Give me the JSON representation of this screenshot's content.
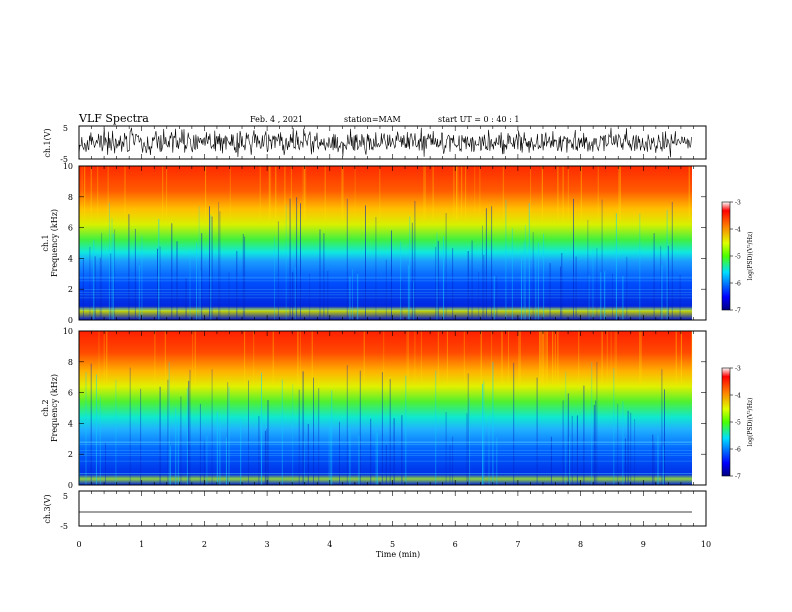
{
  "header": {
    "title": "VLF Spectra",
    "date": "Feb. 4 , 2021",
    "station": "station=MAM",
    "start": "start UT = 0 : 40 : 1"
  },
  "chart_data": [
    {
      "type": "line",
      "panel": "ch1-waveform",
      "ylabel": "ch.1(V)",
      "ylim": [
        -5,
        5
      ],
      "y_ticks": [
        "5",
        "-5"
      ],
      "xlim": [
        0,
        10
      ]
    },
    {
      "type": "heatmap",
      "panel": "ch1-spectrogram",
      "ylabel_line1": "ch.1",
      "ylabel_line2": "Frequency (kHz)",
      "ylim": [
        0,
        10
      ],
      "y_ticks": [
        "0",
        "2",
        "4",
        "6",
        "8",
        "10"
      ],
      "xlim": [
        0,
        10
      ],
      "colorbar": {
        "label": "log(PSD)(V²/Hz)",
        "range": [
          -7,
          -3
        ],
        "ticks": [
          "-3",
          "-4",
          "-5",
          "-6",
          "-7"
        ]
      }
    },
    {
      "type": "heatmap",
      "panel": "ch2-spectrogram",
      "ylabel_line1": "ch.2",
      "ylabel_line2": "Frequency (kHz)",
      "ylim": [
        0,
        10
      ],
      "y_ticks": [
        "0",
        "2",
        "4",
        "6",
        "8",
        "10"
      ],
      "xlim": [
        0,
        10
      ],
      "colorbar": {
        "label": "log(PSD)(V²/Hz)",
        "range": [
          -7,
          -3
        ],
        "ticks": [
          "-3",
          "-4",
          "-5",
          "-6",
          "-7"
        ]
      }
    },
    {
      "type": "line",
      "panel": "ch3-waveform",
      "ylabel": "ch.3(V)",
      "ylim": [
        -5,
        5
      ],
      "y_ticks": [
        "5",
        "-5"
      ],
      "x_ticks": [
        "0",
        "1",
        "2",
        "3",
        "4",
        "5",
        "6",
        "7",
        "8",
        "9",
        "10"
      ],
      "xlabel": "Time (min)",
      "xlim": [
        0,
        10
      ]
    }
  ]
}
